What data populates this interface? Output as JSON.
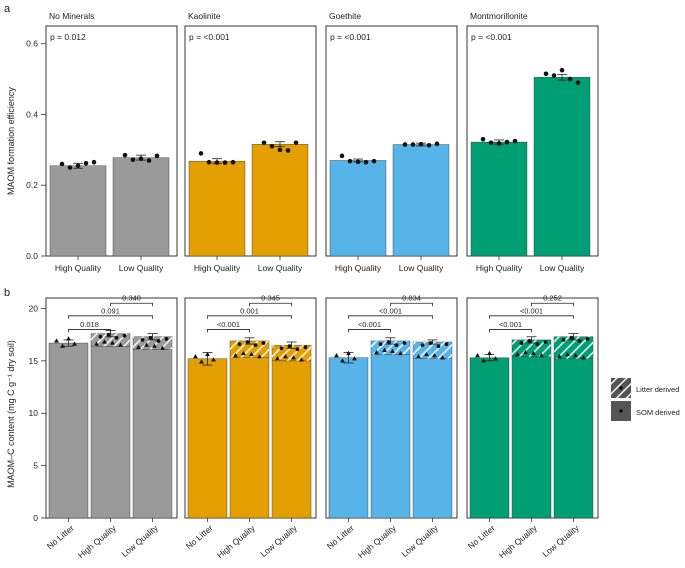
{
  "colors": {
    "no_minerals": "#9a9a9a",
    "kaolinite": "#e39e00",
    "goethite": "#56b4e9",
    "montmorillonite": "#009e73"
  },
  "chart_data": [
    {
      "panel_label": "a",
      "type": "bar",
      "ylabel": "MAOM formation efficiency",
      "ylim": [
        0,
        0.65
      ],
      "yticks": [
        "0.0",
        "0.2",
        "0.4",
        "0.6"
      ],
      "categories": [
        "High Quality",
        "Low Quality"
      ],
      "facets": [
        {
          "name": "No Minerals",
          "p_label": "p = 0.012",
          "color_key": "no_minerals",
          "values": [
            0.255,
            0.278
          ],
          "errors": [
            0.007,
            0.007
          ],
          "points": [
            [
              0.26,
              0.25,
              0.255,
              0.262,
              0.265
            ],
            [
              0.285,
              0.272,
              0.275,
              0.27,
              0.283
            ]
          ]
        },
        {
          "name": "Kaolinite",
          "p_label": "p = <0.001",
          "color_key": "kaolinite",
          "values": [
            0.268,
            0.316
          ],
          "errors": [
            0.007,
            0.007
          ],
          "points": [
            [
              0.29,
              0.265,
              0.264,
              0.264,
              0.265
            ],
            [
              0.32,
              0.31,
              0.3,
              0.298,
              0.32
            ]
          ]
        },
        {
          "name": "Goethite",
          "p_label": "p = <0.001",
          "color_key": "goethite",
          "values": [
            0.27,
            0.315
          ],
          "errors": [
            0.004,
            0.004
          ],
          "points": [
            [
              0.283,
              0.268,
              0.266,
              0.265,
              0.268
            ],
            [
              0.315,
              0.315,
              0.316,
              0.313,
              0.317
            ]
          ]
        },
        {
          "name": "Montmorillonite",
          "p_label": "p = <0.001",
          "color_key": "montmorillonite",
          "values": [
            0.322,
            0.505
          ],
          "errors": [
            0.006,
            0.008
          ],
          "points": [
            [
              0.33,
              0.32,
              0.318,
              0.322,
              0.325
            ],
            [
              0.515,
              0.51,
              0.525,
              0.5,
              0.49
            ]
          ]
        }
      ]
    },
    {
      "panel_label": "b",
      "type": "bar",
      "ylabel": "MAOM–C content (mg C g⁻¹ dry soil)",
      "ylim": [
        0,
        21
      ],
      "yticks": [
        "0",
        "5",
        "10",
        "15",
        "20"
      ],
      "categories": [
        "No Litter",
        "High Quality",
        "Low Quality"
      ],
      "legend": {
        "litter": "Litter derived",
        "som": "SOM derived",
        "position": "right"
      },
      "facets": [
        {
          "name": "No Minerals",
          "color_key": "no_minerals",
          "totals": [
            16.7,
            17.6,
            17.3
          ],
          "som_part": [
            16.7,
            16.4,
            16.1
          ],
          "errors": [
            0.3,
            0.3,
            0.3
          ],
          "comparisons": [
            {
              "label": "0.018",
              "from": 0,
              "to": 1,
              "level": 0
            },
            {
              "label": "0.091",
              "from": 0,
              "to": 2,
              "level": 1
            },
            {
              "label": "0.340",
              "from": 1,
              "to": 2,
              "level": 2
            }
          ]
        },
        {
          "name": "Kaolinite",
          "color_key": "kaolinite",
          "totals": [
            15.2,
            16.9,
            16.5
          ],
          "som_part": [
            15.2,
            15.3,
            15.0
          ],
          "errors": [
            0.6,
            0.3,
            0.3
          ],
          "comparisons": [
            {
              "label": "<0.001",
              "from": 0,
              "to": 1,
              "level": 0
            },
            {
              "label": "0.001",
              "from": 0,
              "to": 2,
              "level": 1
            },
            {
              "label": "0.345",
              "from": 1,
              "to": 2,
              "level": 2
            }
          ]
        },
        {
          "name": "Goethite",
          "color_key": "goethite",
          "totals": [
            15.3,
            16.9,
            16.8
          ],
          "som_part": [
            15.3,
            15.6,
            15.2
          ],
          "errors": [
            0.5,
            0.3,
            0.2
          ],
          "comparisons": [
            {
              "label": "<0.001",
              "from": 0,
              "to": 1,
              "level": 0
            },
            {
              "label": "<0.001",
              "from": 0,
              "to": 2,
              "level": 1
            },
            {
              "label": "0.834",
              "from": 1,
              "to": 2,
              "level": 2
            }
          ]
        },
        {
          "name": "Montmorillonite",
          "color_key": "montmorillonite",
          "totals": [
            15.3,
            17.0,
            17.3
          ],
          "som_part": [
            15.3,
            15.4,
            15.2
          ],
          "errors": [
            0.3,
            0.3,
            0.3
          ],
          "comparisons": [
            {
              "label": "<0.001",
              "from": 0,
              "to": 1,
              "level": 0
            },
            {
              "label": "<0.001",
              "from": 0,
              "to": 2,
              "level": 1
            },
            {
              "label": "0.252",
              "from": 1,
              "to": 2,
              "level": 2
            }
          ]
        }
      ]
    }
  ]
}
